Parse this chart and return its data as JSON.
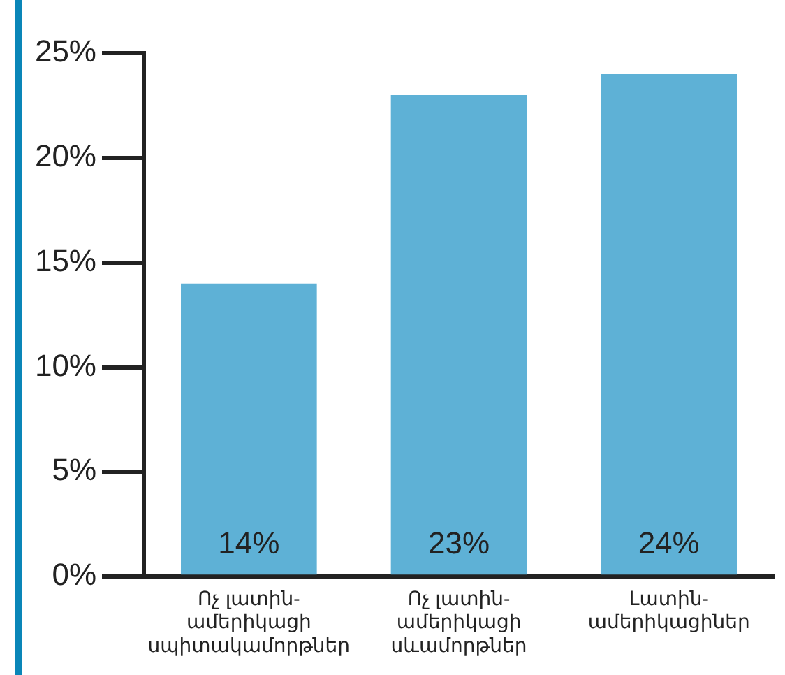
{
  "chart_data": {
    "type": "bar",
    "categories": [
      "Ոչ լատին-\nամերիկացի\nսպիտակամորթներ",
      "Ոչ լատին-\nամերիկացի\nսևամորթներ",
      "Լատին-\nամերիկացիներ"
    ],
    "values": [
      14,
      23,
      24
    ],
    "color": "#5eb1d6",
    "ylim": [
      0,
      25
    ],
    "yticks": [
      {
        "value": 0,
        "label": "0%"
      },
      {
        "value": 5,
        "label": "5%"
      },
      {
        "value": 10,
        "label": "10%"
      },
      {
        "value": 15,
        "label": "15%"
      },
      {
        "value": 20,
        "label": "20%"
      },
      {
        "value": 25,
        "label": "25%"
      }
    ],
    "value_labels": [
      "14%",
      "23%",
      "24%"
    ],
    "grid": false,
    "legend": false
  }
}
